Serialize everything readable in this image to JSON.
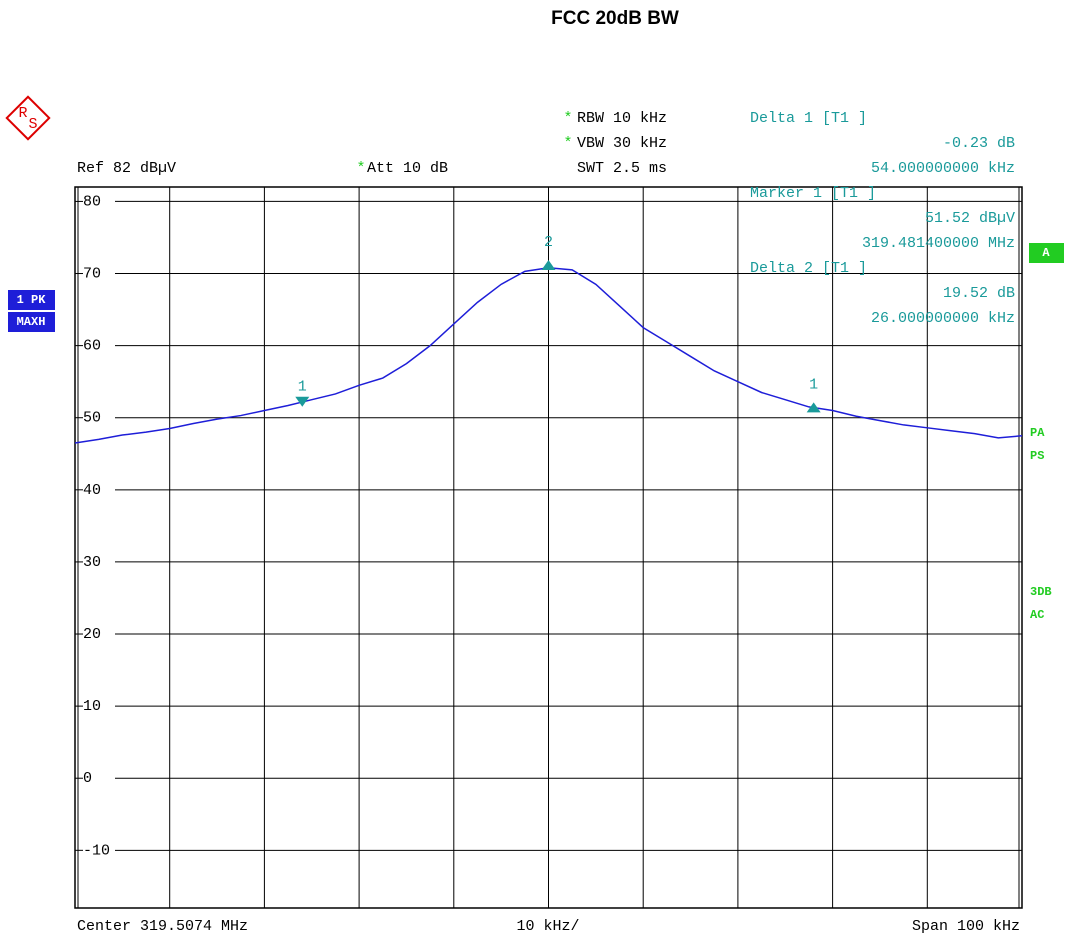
{
  "chart_data": {
    "type": "line",
    "title": "FCC 20dB BW",
    "logo": [
      "R",
      "S"
    ],
    "settings_left": [
      {
        "flag": "",
        "text": "Ref  82 dBµV"
      },
      {
        "flag": "*",
        "text": "Att  10 dB"
      }
    ],
    "settings_right": [
      {
        "flag": "*",
        "text": "RBW 10 kHz"
      },
      {
        "flag": "*",
        "text": "VBW 30 kHz"
      },
      {
        "flag": "",
        "text": "SWT 2.5 ms"
      }
    ],
    "marker_panel": [
      "Delta 1 [T1 ]",
      "-0.23 dB",
      "54.000000000 kHz",
      "Marker 1 [T1 ]",
      "51.52 dBµV",
      "319.481400000 MHz",
      "Delta 2 [T1 ]",
      "19.52 dB",
      "26.000000000 kHz"
    ],
    "left_badges": [
      "1 PK",
      "MAXH"
    ],
    "right_badge": "A",
    "right_flags": [
      "PA",
      "PS",
      "3DB",
      "AC"
    ],
    "footer": [
      "Center 319.5074 MHz",
      "10 kHz/",
      "Span 100 kHz"
    ],
    "xlim": [
      319.4574,
      319.5574
    ],
    "xticks": [
      319.4574,
      319.4674,
      319.4774,
      319.4874,
      319.4974,
      319.5074,
      319.5174,
      319.5274,
      319.5374,
      319.5474,
      319.5574
    ],
    "ylim": [
      -18,
      82
    ],
    "yticks": [
      80,
      70,
      60,
      50,
      40,
      30,
      20,
      10,
      0,
      -10
    ],
    "grid": true,
    "x": [
      319.4574,
      319.4599,
      319.4624,
      319.4649,
      319.4674,
      319.4699,
      319.4724,
      319.4749,
      319.4774,
      319.4799,
      319.4824,
      319.4849,
      319.4874,
      319.4899,
      319.4924,
      319.4949,
      319.4974,
      319.4999,
      319.5024,
      319.5049,
      319.5074,
      319.5099,
      319.5124,
      319.5149,
      319.5174,
      319.5199,
      319.5224,
      319.5249,
      319.5274,
      319.5299,
      319.5324,
      319.5349,
      319.5374,
      319.5399,
      319.5424,
      319.5449,
      319.5474,
      319.5499,
      319.5524,
      319.5549,
      319.5574
    ],
    "series": [
      {
        "name": "1 PK MAXH",
        "color": "#1e1ed8",
        "values": [
          46.5,
          47.0,
          47.6,
          48.0,
          48.5,
          49.2,
          49.8,
          50.3,
          51.0,
          51.7,
          52.5,
          53.3,
          54.5,
          55.5,
          57.5,
          60.0,
          63.0,
          66.0,
          68.5,
          70.3,
          70.8,
          70.5,
          68.5,
          65.5,
          62.5,
          60.5,
          58.5,
          56.5,
          55.0,
          53.5,
          52.5,
          51.5,
          51.0,
          50.2,
          49.6,
          49.0,
          48.6,
          48.2,
          47.8,
          47.2,
          47.5
        ]
      }
    ],
    "marker_color": "#1a9a9a",
    "markers": [
      {
        "label": "1",
        "x": 319.4814,
        "y": 51.52,
        "shape": "down"
      },
      {
        "label": "2",
        "x": 319.5074,
        "y": 71.04,
        "shape": "up"
      },
      {
        "label": "1",
        "x": 319.5354,
        "y": 51.29,
        "shape": "up"
      }
    ]
  }
}
